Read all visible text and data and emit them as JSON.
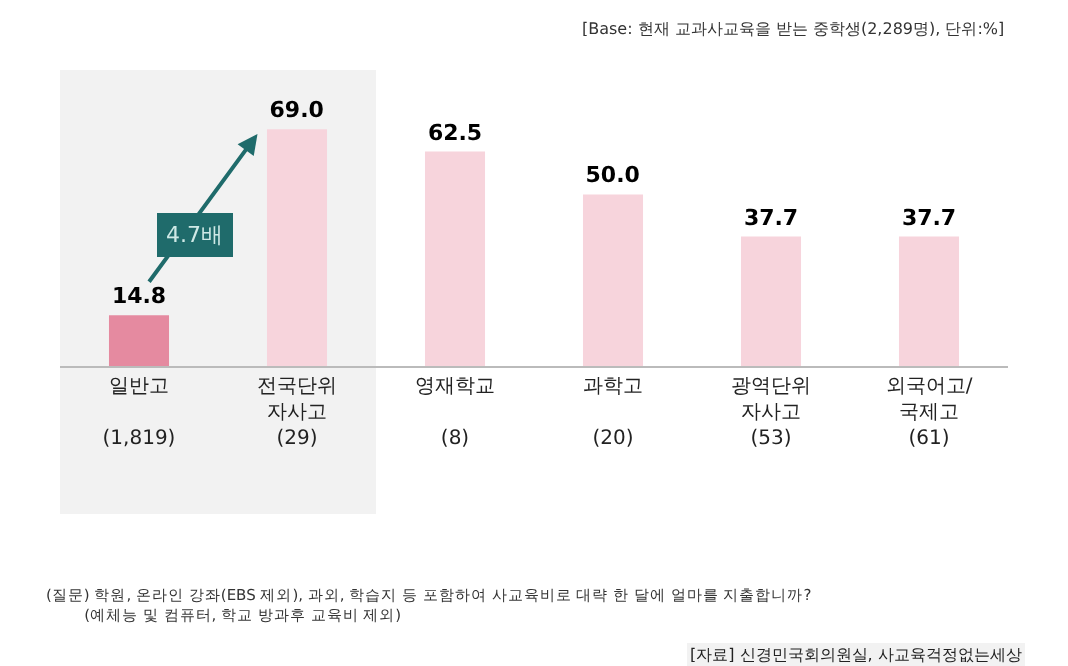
{
  "chart_data": {
    "type": "bar",
    "categories": [
      "일반고\n\n(1,819)",
      "전국단위\n자사고\n(29)",
      "영재학교\n\n(8)",
      "과학고\n\n(20)",
      "광역단위\n자사고\n(53)",
      "외국어고/\n국제고\n(61)"
    ],
    "values": [
      14.8,
      69.0,
      62.5,
      50.0,
      37.7,
      37.7
    ],
    "colors": [
      "#e58aa0",
      "#f7d4dc",
      "#f7d4dc",
      "#f7d4dc",
      "#f7d4dc",
      "#f7d4dc"
    ],
    "value_labels": [
      "14.8",
      "69.0",
      "62.5",
      "50.0",
      "37.7",
      "37.7"
    ],
    "bands": [
      {
        "axis": "x",
        "from": "일반고\n\n(1,819)",
        "to": "전국단위\n자사고\n(29)",
        "color": "#f2f2f2"
      }
    ],
    "annotations": [
      "[Base: 현재 교과사교육을 받는 중학생(2,289명), 단위:%]",
      "4.7배",
      "(질문) 학원, 온라인 강좌(EBS 제외), 과외, 학습지 등 포함하여 사교육비로 대략 한 달에 얼마를 지출합니까?\n        (예체능 및 컴퓨터, 학교 방과후 교육비 제외)",
      "[자료] 신경민국회의원실, 사교육걱정없는세상"
    ]
  }
}
